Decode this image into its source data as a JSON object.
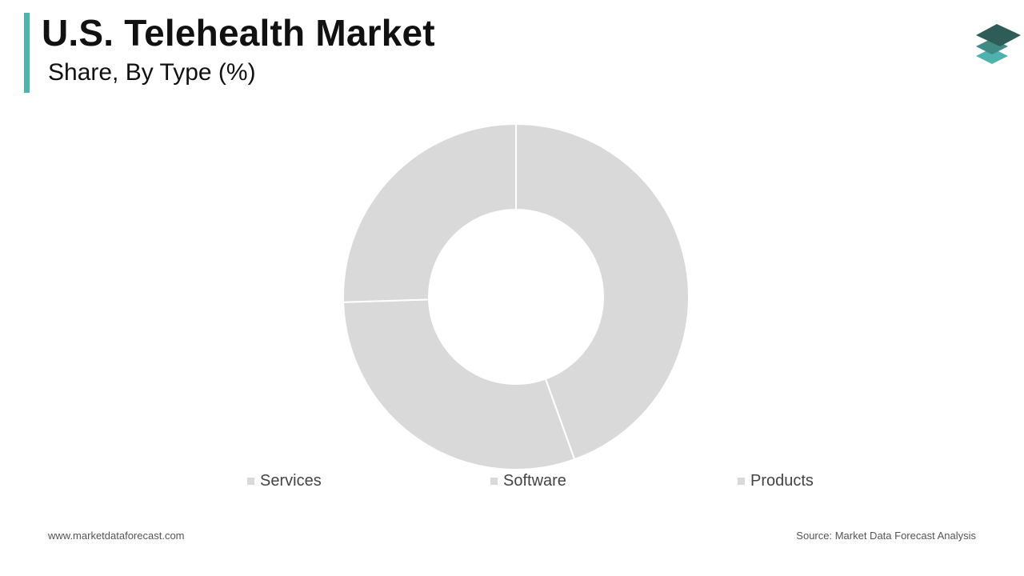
{
  "header": {
    "title": "U.S. Telehealth Market",
    "subtitle": "Share, By Type (%)"
  },
  "colors": {
    "accent": "#4fb3ad",
    "slice": "#d9d9d9",
    "slice_border": "#ffffff",
    "logo_dark": "#2e5d57",
    "logo_mid": "#3f8a82",
    "logo_light": "#4fb3ad"
  },
  "logo": {
    "icon": "stacked-layers-icon"
  },
  "chart_data": {
    "type": "pie",
    "donut": true,
    "categories": [
      "Services",
      "Software",
      "Products"
    ],
    "values": [
      44.5,
      30,
      25.5
    ],
    "legend_position": "bottom"
  },
  "legend": {
    "items": [
      {
        "label": "Services"
      },
      {
        "label": "Software"
      },
      {
        "label": "Products"
      }
    ]
  },
  "footer": {
    "website": "www.marketdataforecast.com",
    "source": "Source: Market Data Forecast Analysis"
  }
}
